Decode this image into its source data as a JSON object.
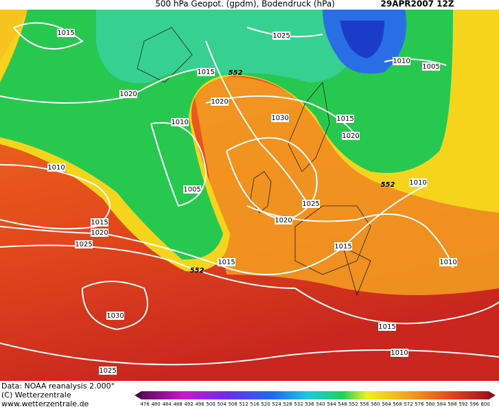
{
  "header": {
    "title": "500 hPa Geopot. (gpdm), Bodendruck (hPa)",
    "date": "29APR2007 12Z"
  },
  "map": {
    "contour_labels": [
      1015,
      1025,
      1010,
      1005,
      1020,
      1015,
      552,
      1020,
      1010,
      1030,
      1015,
      1020,
      1010,
      1005,
      552,
      1010,
      1025,
      1015,
      1020,
      1020,
      1025,
      1015,
      1010,
      1015,
      552,
      1030,
      1015,
      1010,
      1025
    ]
  },
  "footer": {
    "source": "Data: NOAA reanalysis 2.000°",
    "copyright": "(C) Wetterzentrale",
    "url": "www.wetterzentrale.de"
  },
  "legend": {
    "labels": [
      476,
      480,
      484,
      488,
      492,
      496,
      500,
      504,
      508,
      512,
      516,
      520,
      524,
      528,
      532,
      536,
      540,
      544,
      548,
      552,
      556,
      560,
      564,
      568,
      572,
      576,
      580,
      584,
      588,
      592,
      596,
      600
    ]
  }
}
